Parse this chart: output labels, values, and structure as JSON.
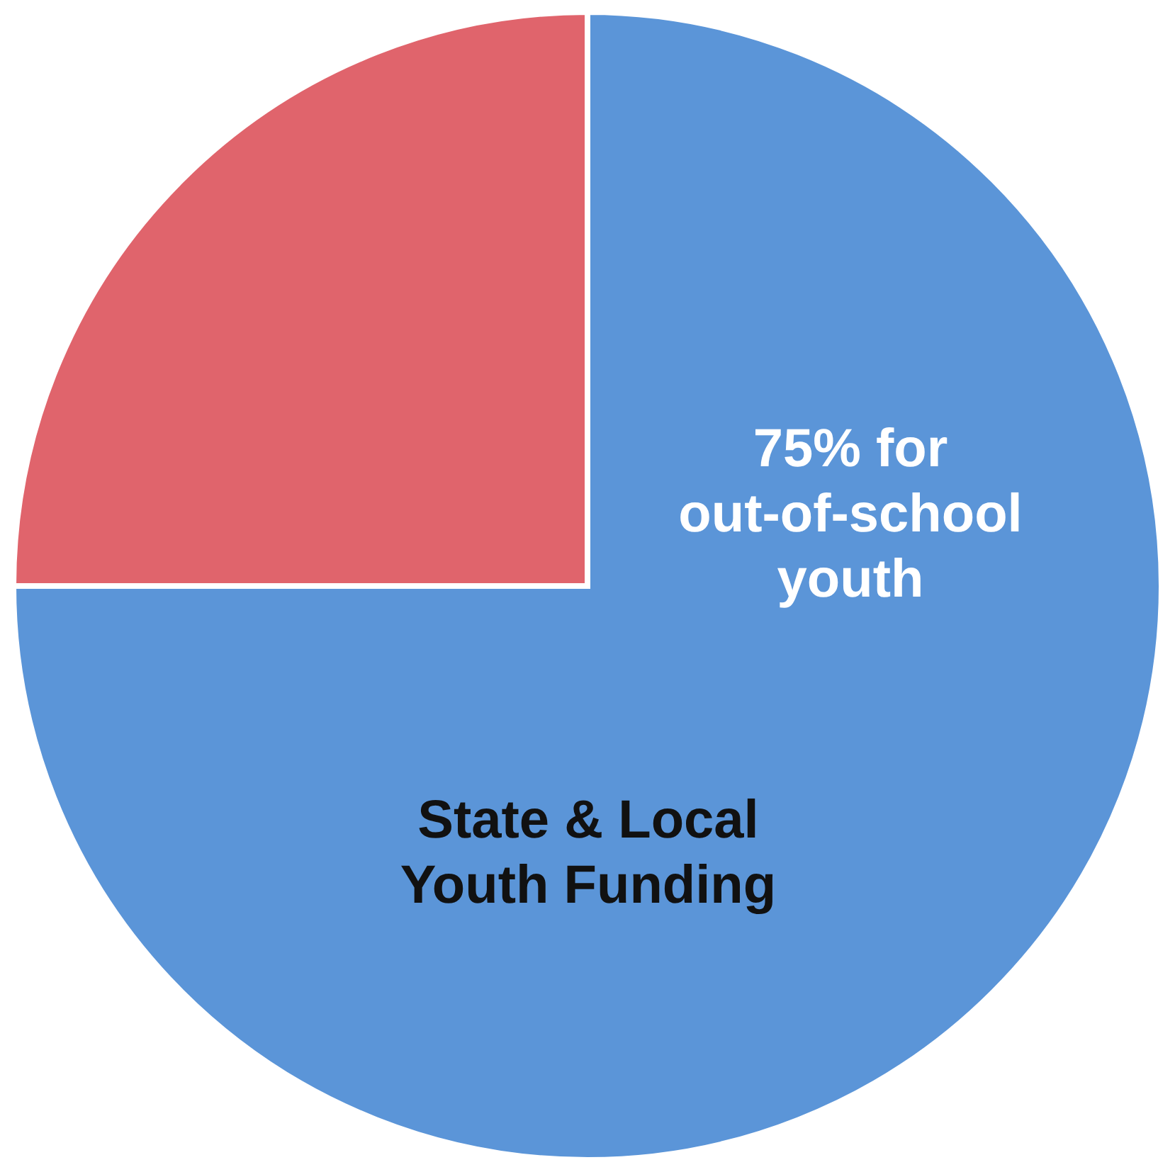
{
  "chart_data": {
    "type": "pie",
    "title": "State & Local Youth Funding",
    "categories": [
      "75% for out-of-school youth",
      null
    ],
    "values": [
      75,
      25
    ],
    "colors": [
      "#5b95d8",
      "#e0646c"
    ]
  }
}
